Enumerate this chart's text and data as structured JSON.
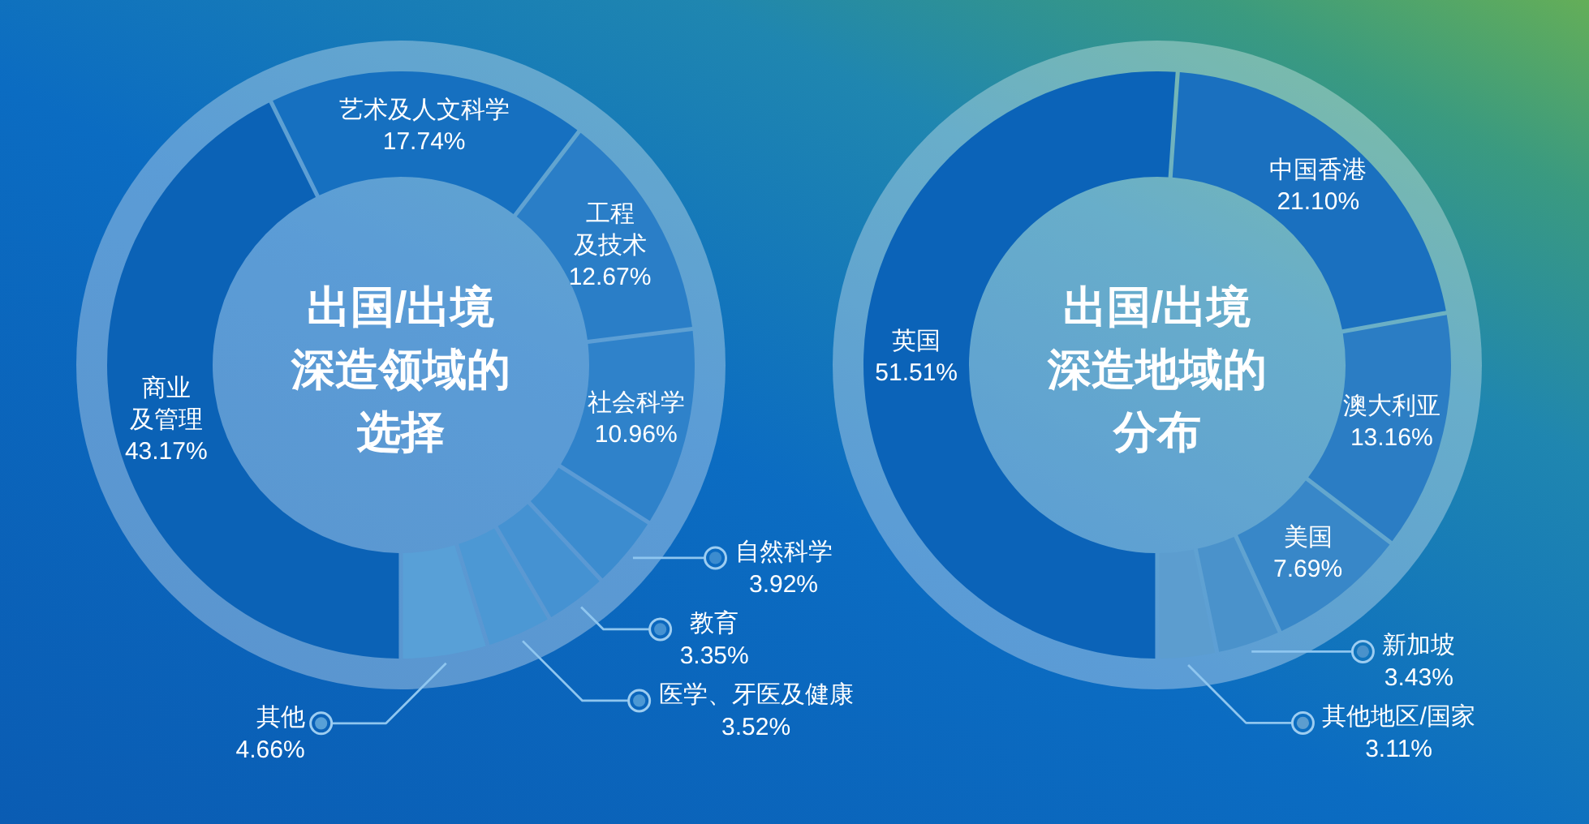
{
  "chart_data": [
    {
      "type": "donut",
      "title": "出国/出境深造领域的选择",
      "categories": [
        "商业及管理",
        "艺术及人文科学",
        "工程及技术",
        "社会科学",
        "自然科学",
        "教育",
        "医学、牙医及健康",
        "其他"
      ],
      "values": [
        43.17,
        17.74,
        12.67,
        10.96,
        3.92,
        3.35,
        3.52,
        4.66
      ],
      "colors": [
        "#0b62b6",
        "#1670c0",
        "#2a7ec7",
        "#2f82ca",
        "#3c8ccf",
        "#4592d2",
        "#4c98d4",
        "#58a0d7"
      ],
      "value_labels": [
        "43.17%",
        "17.74%",
        "12.67%",
        "10.96%",
        "3.92%",
        "3.35%",
        "3.52%",
        "4.66%"
      ],
      "legend": "bottom right"
    },
    {
      "type": "donut",
      "title": "出国/出境深造地域的分布",
      "categories": [
        "英国",
        "中国香港",
        "澳大利亚",
        "美国",
        "新加坡",
        "其他地区/国家"
      ],
      "values": [
        51.51,
        21.1,
        13.16,
        7.69,
        3.43,
        3.11
      ],
      "colors": [
        "#0b63b8",
        "#1a70bf",
        "#2b7dc4",
        "#3887c8",
        "#4a92cb",
        "#5c9dcf"
      ],
      "value_labels": [
        "51.51%",
        "21.10%",
        "13.16%",
        "7.69%",
        "3.43%",
        "3.11%"
      ],
      "legend": "bottom right"
    }
  ]
}
